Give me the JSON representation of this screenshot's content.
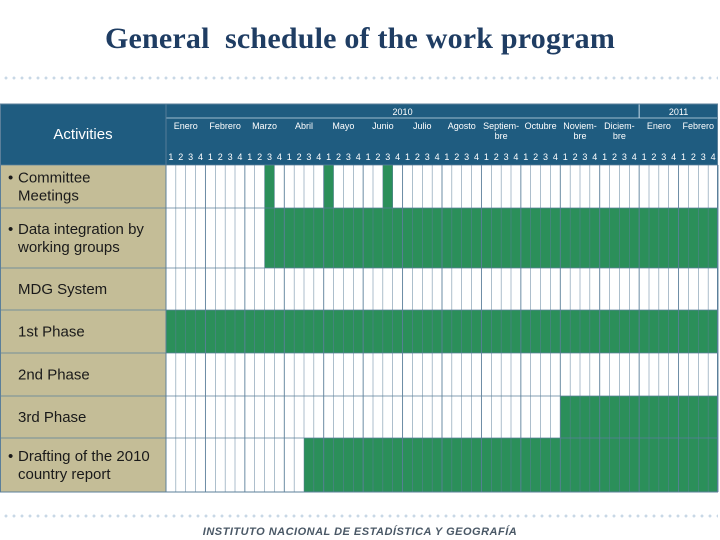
{
  "title": "General  schedule of the work program",
  "footer": "INSTITUTO NACIONAL  DE ESTADÍSTICA Y GEOGRAFÍA",
  "colors": {
    "header": "#1f5c80",
    "label_bg": "#c4bd97",
    "fill": "#2b8f5a",
    "empty": "#ffffff",
    "grid": "#5b7f9a"
  },
  "table": {
    "activities_header": "Activities",
    "years": [
      {
        "label": "2010",
        "months": 12
      },
      {
        "label": "2011",
        "months": 2
      }
    ],
    "months": [
      [
        "Enero"
      ],
      [
        "Febrero"
      ],
      [
        "Marzo"
      ],
      [
        "Abril"
      ],
      [
        "Mayo"
      ],
      [
        "Junio"
      ],
      [
        "Julio"
      ],
      [
        "Agosto"
      ],
      [
        "Septiem-",
        "bre"
      ],
      [
        "Octubre"
      ],
      [
        "Noviem-",
        "bre"
      ],
      [
        "Diciem-",
        "bre"
      ],
      [
        "Enero"
      ],
      [
        "Febrero"
      ]
    ],
    "weeks_per_month": [
      "1",
      "2",
      "3",
      "4"
    ],
    "rows": [
      {
        "bullet": true,
        "lines": [
          "Committee",
          "Meetings"
        ],
        "filled_weeks": [
          10,
          16,
          22
        ]
      },
      {
        "bullet": true,
        "lines": [
          "Data integration by",
          "working groups"
        ],
        "filled_weeks": [
          {
            "from": 10,
            "to": 55
          }
        ]
      },
      {
        "bullet": false,
        "lines": [
          "MDG System"
        ],
        "filled_weeks": []
      },
      {
        "bullet": false,
        "lines": [
          "1st  Phase"
        ],
        "filled_weeks": [
          {
            "from": 0,
            "to": 55
          }
        ]
      },
      {
        "bullet": false,
        "lines": [
          "2nd Phase"
        ],
        "filled_weeks": []
      },
      {
        "bullet": false,
        "lines": [
          "3rd Phase"
        ],
        "filled_weeks": [
          {
            "from": 40,
            "to": 55
          }
        ]
      },
      {
        "bullet": true,
        "lines": [
          "Drafting of the 2010",
          "country report"
        ],
        "filled_weeks": [
          {
            "from": 14,
            "to": 55
          }
        ]
      }
    ]
  }
}
